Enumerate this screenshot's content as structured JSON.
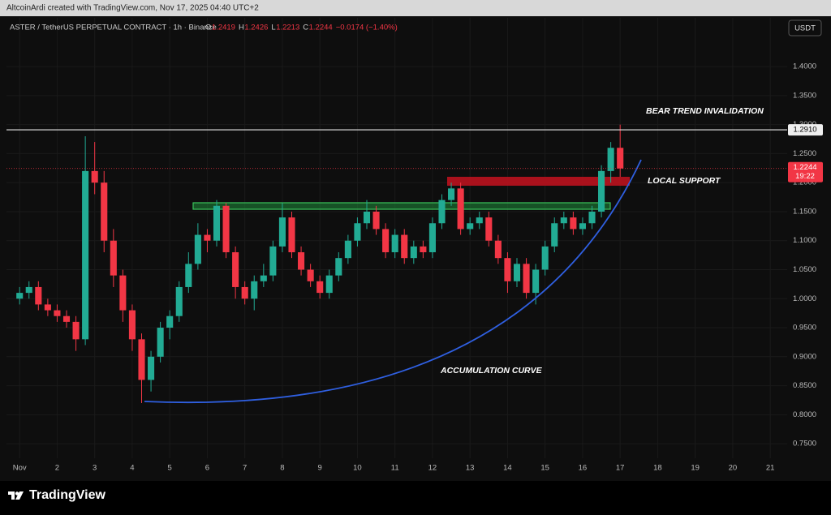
{
  "header": "AltcoinArdi created with TradingView.com, Nov 17, 2025 04:40 UTC+2",
  "footer": {
    "brand": "TradingView"
  },
  "chart_data": {
    "type": "candlestick",
    "symbol": "ASTER / TetherUS PERPETUAL CONTRACT · 1h · Binance",
    "quote": [
      {
        "key": "O",
        "value": "1.2419"
      },
      {
        "key": "H",
        "value": "1.2426"
      },
      {
        "key": "L",
        "value": "1.2213"
      },
      {
        "key": "C",
        "value": "1.2244"
      },
      {
        "key": "",
        "value": "−0.0174 (−1.40%)"
      }
    ],
    "currency": "USDT",
    "x": [
      1,
      1.25,
      1.5,
      1.75,
      2,
      2.25,
      2.5,
      2.75,
      3,
      3.25,
      3.5,
      3.75,
      4,
      4.25,
      4.5,
      4.75,
      5,
      5.25,
      5.5,
      5.75,
      6,
      6.25,
      6.5,
      6.75,
      7,
      7.25,
      7.5,
      7.75,
      8,
      8.25,
      8.5,
      8.75,
      9,
      9.25,
      9.5,
      9.75,
      10,
      10.25,
      10.5,
      10.75,
      11,
      11.25,
      11.5,
      11.75,
      12,
      12.25,
      12.5,
      12.75,
      13,
      13.25,
      13.5,
      13.75,
      14,
      14.25,
      14.5,
      14.75,
      15,
      15.25,
      15.5,
      15.75,
      16,
      16.25,
      16.5,
      16.75,
      17
    ],
    "open": [
      1.0,
      1.01,
      1.02,
      0.99,
      0.98,
      0.97,
      0.96,
      0.93,
      1.22,
      1.2,
      1.1,
      1.04,
      0.98,
      0.93,
      0.86,
      0.9,
      0.95,
      0.97,
      1.02,
      1.06,
      1.11,
      1.1,
      1.16,
      1.08,
      1.02,
      1.0,
      1.03,
      1.04,
      1.09,
      1.14,
      1.08,
      1.05,
      1.03,
      1.01,
      1.04,
      1.07,
      1.1,
      1.13,
      1.15,
      1.12,
      1.08,
      1.11,
      1.07,
      1.09,
      1.08,
      1.13,
      1.17,
      1.19,
      1.12,
      1.13,
      1.14,
      1.1,
      1.07,
      1.03,
      1.06,
      1.01,
      1.05,
      1.09,
      1.13,
      1.14,
      1.12,
      1.13,
      1.15,
      1.22,
      1.26
    ],
    "high": [
      1.02,
      1.03,
      1.03,
      1.0,
      0.99,
      0.98,
      0.97,
      1.28,
      1.27,
      1.22,
      1.12,
      1.05,
      0.99,
      0.94,
      0.91,
      0.96,
      0.98,
      1.03,
      1.08,
      1.13,
      1.12,
      1.17,
      1.165,
      1.09,
      1.03,
      1.04,
      1.06,
      1.1,
      1.165,
      1.15,
      1.09,
      1.06,
      1.04,
      1.05,
      1.08,
      1.11,
      1.14,
      1.17,
      1.16,
      1.13,
      1.12,
      1.12,
      1.1,
      1.1,
      1.14,
      1.18,
      1.2,
      1.2,
      1.14,
      1.15,
      1.15,
      1.11,
      1.08,
      1.07,
      1.07,
      1.06,
      1.1,
      1.14,
      1.15,
      1.15,
      1.14,
      1.16,
      1.23,
      1.27,
      1.3
    ],
    "low": [
      0.99,
      1.0,
      0.98,
      0.97,
      0.96,
      0.95,
      0.91,
      0.92,
      1.18,
      1.08,
      1.02,
      0.96,
      0.91,
      0.82,
      0.84,
      0.89,
      0.93,
      0.96,
      1.01,
      1.05,
      1.08,
      1.09,
      1.07,
      1.0,
      0.99,
      0.98,
      1.02,
      1.03,
      1.08,
      1.07,
      1.04,
      1.02,
      1.0,
      1.0,
      1.03,
      1.06,
      1.09,
      1.12,
      1.11,
      1.07,
      1.07,
      1.06,
      1.06,
      1.07,
      1.07,
      1.12,
      1.16,
      1.11,
      1.11,
      1.12,
      1.09,
      1.06,
      1.01,
      1.02,
      1.0,
      0.99,
      1.04,
      1.08,
      1.12,
      1.11,
      1.11,
      1.12,
      1.14,
      1.2,
      1.21
    ],
    "close": [
      1.01,
      1.02,
      0.99,
      0.98,
      0.97,
      0.96,
      0.93,
      1.22,
      1.2,
      1.1,
      1.04,
      0.98,
      0.93,
      0.86,
      0.9,
      0.95,
      0.97,
      1.02,
      1.06,
      1.11,
      1.1,
      1.16,
      1.08,
      1.02,
      1.0,
      1.03,
      1.04,
      1.09,
      1.14,
      1.08,
      1.05,
      1.03,
      1.01,
      1.04,
      1.07,
      1.1,
      1.13,
      1.15,
      1.12,
      1.08,
      1.11,
      1.07,
      1.09,
      1.08,
      1.13,
      1.17,
      1.19,
      1.12,
      1.13,
      1.14,
      1.1,
      1.07,
      1.03,
      1.06,
      1.01,
      1.05,
      1.09,
      1.13,
      1.14,
      1.12,
      1.13,
      1.15,
      1.22,
      1.26,
      1.2244
    ],
    "up_color": "#22ab94",
    "down_color": "#f23645",
    "xlim": [
      0.65,
      21.45
    ],
    "xticks": [
      {
        "value": 1,
        "label": "Nov"
      },
      2,
      3,
      4,
      5,
      6,
      7,
      8,
      9,
      10,
      11,
      12,
      13,
      14,
      15,
      16,
      17,
      18,
      19,
      20,
      21
    ],
    "ylim": [
      0.725,
      1.484
    ],
    "yticks": [
      {
        "value": 0.75,
        "label": "0.7500"
      },
      {
        "value": 0.8,
        "label": "0.8000"
      },
      {
        "value": 0.85,
        "label": "0.8500"
      },
      {
        "value": 0.9,
        "label": "0.9000"
      },
      {
        "value": 0.95,
        "label": "0.9500"
      },
      {
        "value": 1.0,
        "label": "1.0000"
      },
      {
        "value": 1.05,
        "label": "1.0500"
      },
      {
        "value": 1.1,
        "label": "1.1000"
      },
      {
        "value": 1.15,
        "label": "1.1500"
      },
      {
        "value": 1.2,
        "label": "1.2000"
      },
      {
        "value": 1.25,
        "label": "1.2500"
      },
      {
        "value": 1.3,
        "label": "1.3000"
      },
      {
        "value": 1.35,
        "label": "1.3500"
      },
      {
        "value": 1.4,
        "label": "1.4000"
      }
    ],
    "grid": true,
    "level": {
      "value": 1.291,
      "label": "1.2910"
    },
    "last_price": {
      "value": 1.2244,
      "label": "1.2244",
      "countdown": "19:22"
    },
    "annotations": [
      "BEAR TREND INVALIDATION",
      "LOCAL SUPPORT",
      "ACCUMULATION CURVE"
    ]
  }
}
